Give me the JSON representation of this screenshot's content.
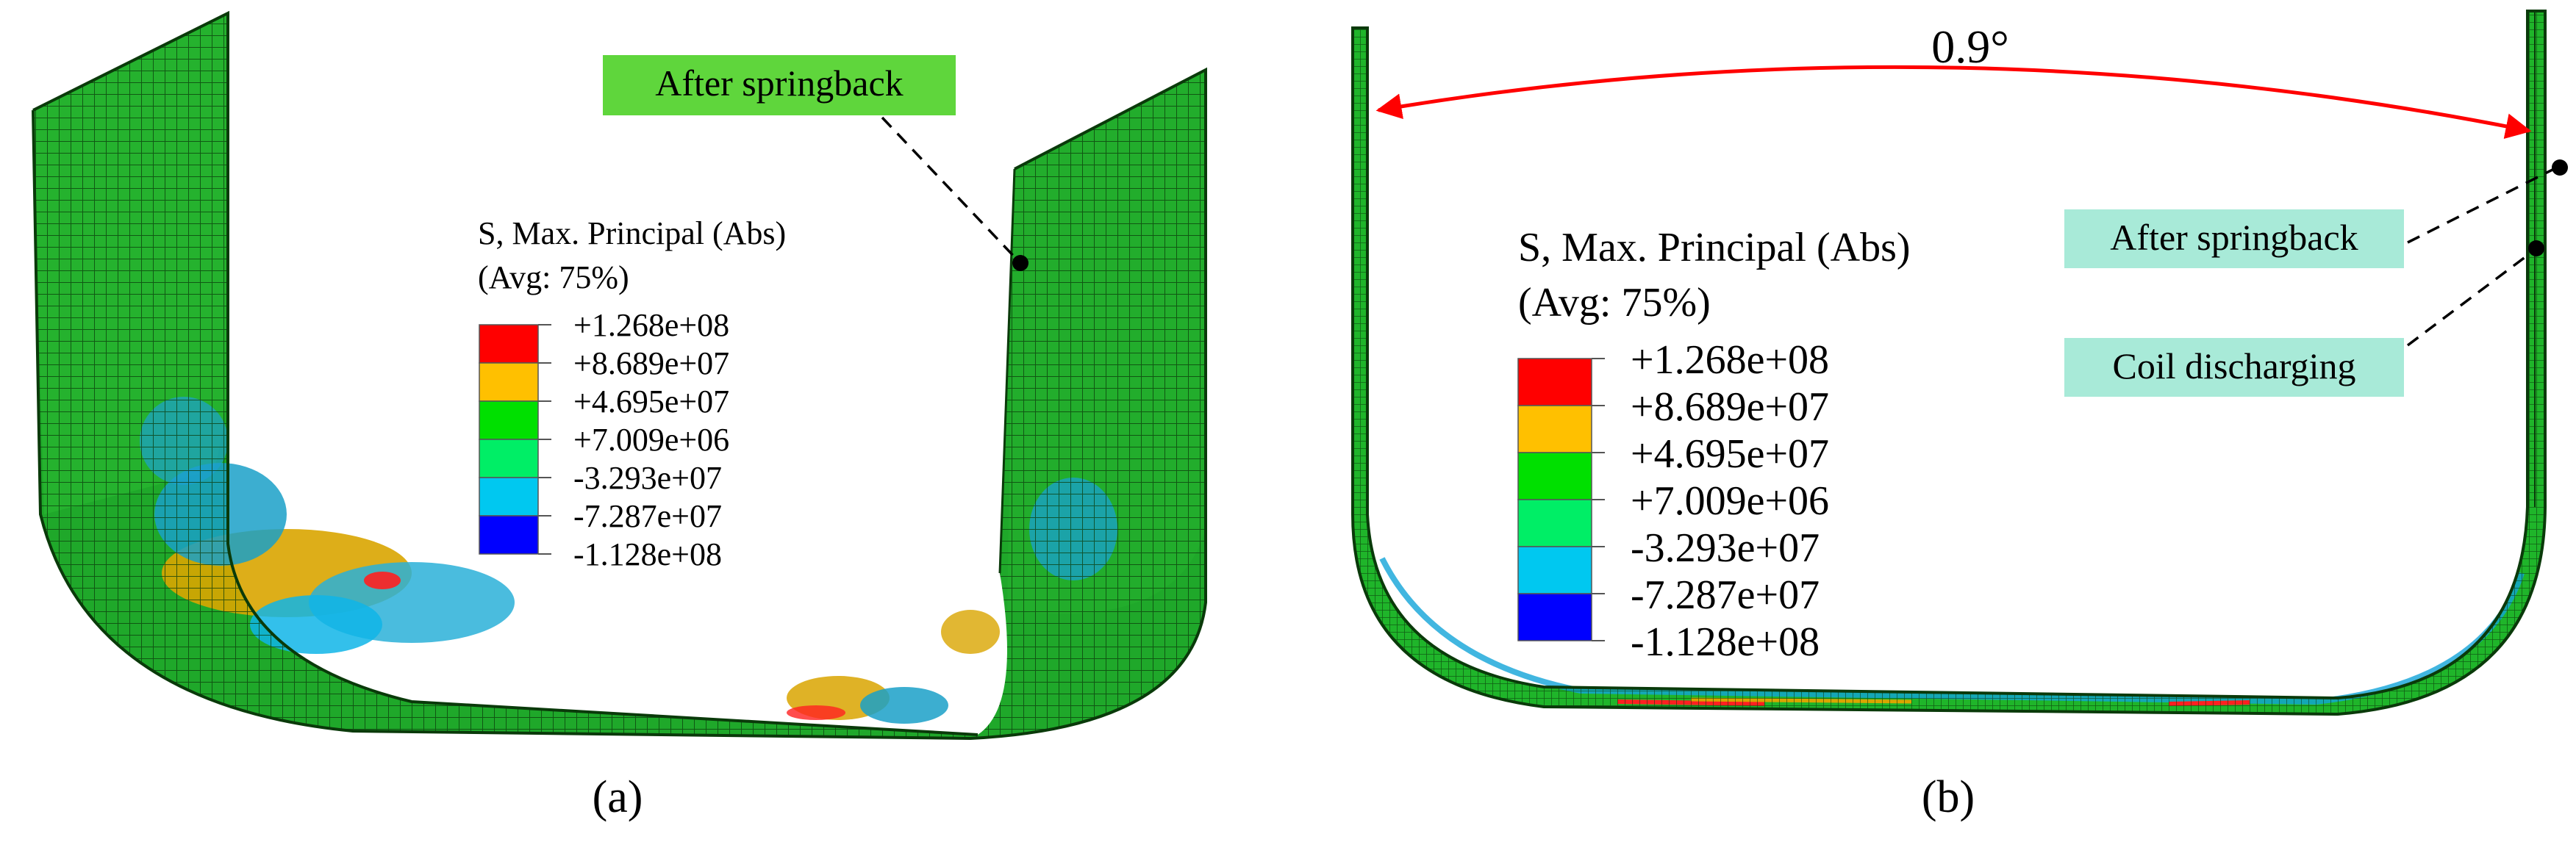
{
  "panels": [
    {
      "label": "(a)",
      "callout": "After springback",
      "legend": {
        "title": "S, Max. Principal (Abs)",
        "subtitle": "(Avg: 75%)",
        "values": [
          "+1.268e+08",
          "+8.689e+07",
          "+4.695e+07",
          "+7.009e+06",
          "-3.293e+07",
          "-7.287e+07",
          "-1.128e+08"
        ],
        "colors": [
          "#ff0000",
          "#ffc000",
          "#00e000",
          "#00ee66",
          "#00c8f0",
          "#0000ff"
        ]
      }
    },
    {
      "label": "(b)",
      "angle": "0.9°",
      "callouts": [
        "After springback",
        "Coil discharging"
      ],
      "legend": {
        "title": "S, Max. Principal (Abs)",
        "subtitle": "(Avg: 75%)",
        "values": [
          "+1.268e+08",
          "+8.689e+07",
          "+4.695e+07",
          "+7.009e+06",
          "-3.293e+07",
          "-7.287e+07",
          "-1.128e+08"
        ],
        "colors": [
          "#ff0000",
          "#ffc000",
          "#00e000",
          "#00ee66",
          "#00c8f0",
          "#0000ff"
        ]
      }
    }
  ]
}
